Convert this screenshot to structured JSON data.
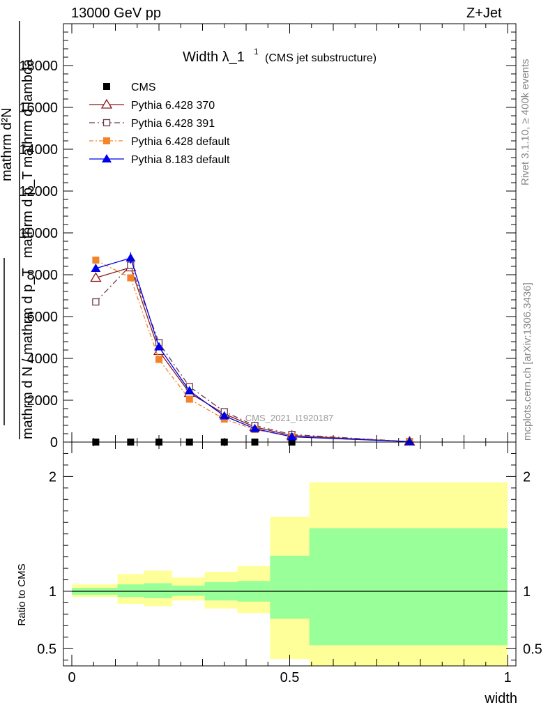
{
  "header": {
    "energy_label": "13000 GeV pp",
    "process_label": "Z+Jet"
  },
  "side_labels": {
    "rivet": "Rivet 3.1.10, ≥ 400k events",
    "mcplots": "mcplots.cern.ch [arXiv:1306.3436]"
  },
  "chart_data": [
    {
      "type": "line",
      "title_main": "Width λ_1",
      "title_sup": "1",
      "title_sub": "(CMS jet substructure)",
      "analysis_label": "CMS_2021_I1920187",
      "ylabel_numerator": "mathrm d²N",
      "ylabel_denominator": "mathrm d p_T mathrm d lambda",
      "ylabel_top": "1",
      "ylabel_bottom": "mathrm d N / mathrm d p_T",
      "xlim": [
        0,
        1
      ],
      "ylim": [
        0,
        20000
      ],
      "yticks": [
        0,
        2000,
        4000,
        6000,
        8000,
        10000,
        12000,
        14000,
        16000,
        18000
      ],
      "ytick_labels": [
        "0",
        "2000",
        "4000",
        "6000",
        "8000",
        "10000",
        "12000",
        "14000",
        "16000",
        "18000"
      ],
      "x": [
        0.055,
        0.135,
        0.2,
        0.27,
        0.35,
        0.42,
        0.505,
        0.775
      ],
      "series": [
        {
          "name": "CMS",
          "color": "#000000",
          "marker": "square-filled",
          "values": [
            5,
            5,
            5,
            5,
            5,
            5,
            5,
            5
          ]
        },
        {
          "name": "Pythia 6.428 370",
          "color": "#8b1a1a",
          "marker": "triangle-open",
          "dash": "",
          "values": [
            7850,
            8350,
            4350,
            2350,
            1350,
            720,
            310,
            20
          ]
        },
        {
          "name": "Pythia 6.428 391",
          "color": "#6b3a4a",
          "marker": "square-open",
          "dash": "8,4,2,4",
          "values": [
            6700,
            8450,
            4750,
            2650,
            1450,
            790,
            360,
            20
          ]
        },
        {
          "name": "Pythia 6.428 default",
          "color": "#f5832a",
          "marker": "square-filled",
          "dash": "6,3,2,3",
          "values": [
            8700,
            7850,
            3950,
            2050,
            1100,
            600,
            260,
            20
          ]
        },
        {
          "name": "Pythia 8.183 default",
          "color": "#0000e6",
          "marker": "triangle-filled",
          "dash": "",
          "values": [
            8300,
            8800,
            4550,
            2450,
            1250,
            640,
            250,
            20
          ]
        }
      ]
    },
    {
      "type": "area",
      "ylabel": "Ratio to CMS",
      "xlabel": "width",
      "xlim": [
        0,
        1
      ],
      "ylim": [
        0.35,
        2.3
      ],
      "xtick_labels": [
        "0",
        "0.5",
        "1"
      ],
      "ytick_labels": [
        "0.5",
        "1",
        "2"
      ],
      "bins": [
        {
          "lo": 0.0,
          "hi": 0.105,
          "inner": [
            0.97,
            1.03
          ],
          "outer": [
            0.95,
            1.06
          ]
        },
        {
          "lo": 0.105,
          "hi": 0.165,
          "inner": [
            0.95,
            1.06
          ],
          "outer": [
            0.89,
            1.15
          ]
        },
        {
          "lo": 0.165,
          "hi": 0.23,
          "inner": [
            0.94,
            1.07
          ],
          "outer": [
            0.87,
            1.18
          ]
        },
        {
          "lo": 0.23,
          "hi": 0.305,
          "inner": [
            0.96,
            1.05
          ],
          "outer": [
            0.92,
            1.12
          ]
        },
        {
          "lo": 0.305,
          "hi": 0.38,
          "inner": [
            0.92,
            1.08
          ],
          "outer": [
            0.85,
            1.17
          ]
        },
        {
          "lo": 0.38,
          "hi": 0.455,
          "inner": [
            0.91,
            1.09
          ],
          "outer": [
            0.81,
            1.22
          ]
        },
        {
          "lo": 0.455,
          "hi": 0.545,
          "inner": [
            0.76,
            1.31
          ],
          "outer": [
            0.41,
            1.65
          ]
        },
        {
          "lo": 0.545,
          "hi": 1.0,
          "inner": [
            0.53,
            1.55
          ],
          "outer": [
            0.35,
            1.95
          ]
        }
      ],
      "reference": 1,
      "inner_color": "#99ff99",
      "outer_color": "#ffff99"
    }
  ]
}
